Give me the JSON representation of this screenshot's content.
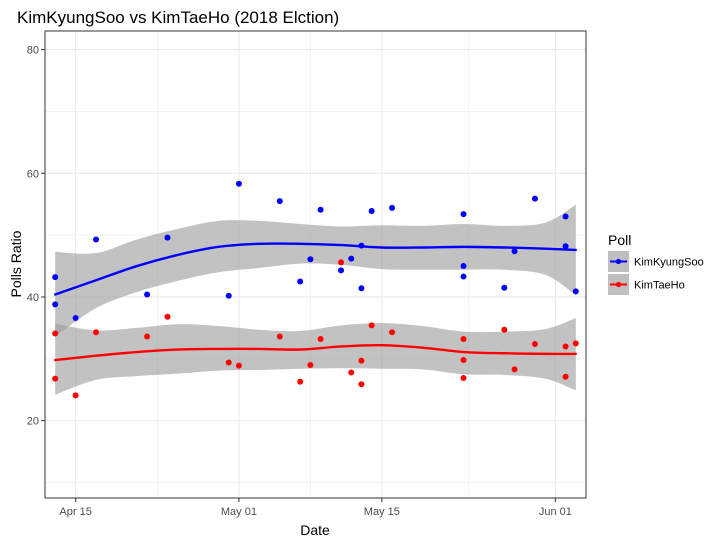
{
  "chart_data": {
    "type": "scatter",
    "title": "KimKyungSoo vs KimTaeHo (2018 Elction)",
    "xlabel": "Date",
    "ylabel": "Polls Ratio",
    "x_axis_type": "date",
    "xlim": [
      "2018-04-12",
      "2018-06-04"
    ],
    "ylim": [
      7.5,
      83
    ],
    "x_ticks": [
      {
        "date": "2018-04-15",
        "label": "Apr 15"
      },
      {
        "date": "2018-05-01",
        "label": "May 01"
      },
      {
        "date": "2018-05-15",
        "label": "May 15"
      },
      {
        "date": "2018-06-01",
        "label": "Jun 01"
      }
    ],
    "y_ticks": [
      {
        "value": 20,
        "label": "20"
      },
      {
        "value": 40,
        "label": "40"
      },
      {
        "value": 60,
        "label": "60"
      },
      {
        "value": 80,
        "label": "80"
      }
    ],
    "grid": true,
    "smoother": "loess with confidence band",
    "legend": {
      "title": "Poll",
      "position": "right"
    },
    "series": [
      {
        "name": "KimKyungSoo",
        "color": "#0000ff",
        "points": [
          {
            "x": "2018-04-13",
            "y": 43.2
          },
          {
            "x": "2018-04-13",
            "y": 38.8
          },
          {
            "x": "2018-04-15",
            "y": 36.6
          },
          {
            "x": "2018-04-17",
            "y": 49.3
          },
          {
            "x": "2018-04-22",
            "y": 40.4
          },
          {
            "x": "2018-04-24",
            "y": 49.6
          },
          {
            "x": "2018-04-30",
            "y": 40.2
          },
          {
            "x": "2018-05-01",
            "y": 58.3
          },
          {
            "x": "2018-05-05",
            "y": 55.5
          },
          {
            "x": "2018-05-07",
            "y": 42.5
          },
          {
            "x": "2018-05-08",
            "y": 46.1
          },
          {
            "x": "2018-05-09",
            "y": 54.1
          },
          {
            "x": "2018-05-11",
            "y": 44.3
          },
          {
            "x": "2018-05-12",
            "y": 46.2
          },
          {
            "x": "2018-05-13",
            "y": 48.3
          },
          {
            "x": "2018-05-13",
            "y": 41.4
          },
          {
            "x": "2018-05-14",
            "y": 53.9
          },
          {
            "x": "2018-05-16",
            "y": 54.4
          },
          {
            "x": "2018-05-23",
            "y": 53.4
          },
          {
            "x": "2018-05-23",
            "y": 45.0
          },
          {
            "x": "2018-05-23",
            "y": 43.3
          },
          {
            "x": "2018-05-27",
            "y": 41.5
          },
          {
            "x": "2018-05-28",
            "y": 47.4
          },
          {
            "x": "2018-05-30",
            "y": 55.9
          },
          {
            "x": "2018-06-02",
            "y": 53.0
          },
          {
            "x": "2018-06-02",
            "y": 48.2
          },
          {
            "x": "2018-06-03",
            "y": 40.9
          }
        ],
        "smooth": [
          {
            "x": "2018-04-13",
            "y": 40.4
          },
          {
            "x": "2018-04-17",
            "y": 42.7
          },
          {
            "x": "2018-04-21",
            "y": 45.0
          },
          {
            "x": "2018-04-25",
            "y": 46.8
          },
          {
            "x": "2018-04-29",
            "y": 48.1
          },
          {
            "x": "2018-05-03",
            "y": 48.6
          },
          {
            "x": "2018-05-07",
            "y": 48.6
          },
          {
            "x": "2018-05-11",
            "y": 48.4
          },
          {
            "x": "2018-05-15",
            "y": 48.0
          },
          {
            "x": "2018-05-19",
            "y": 48.0
          },
          {
            "x": "2018-05-23",
            "y": 48.1
          },
          {
            "x": "2018-05-27",
            "y": 48.0
          },
          {
            "x": "2018-05-31",
            "y": 47.8
          },
          {
            "x": "2018-06-03",
            "y": 47.6
          }
        ],
        "band_upper": [
          {
            "x": "2018-04-13",
            "y": 47.3
          },
          {
            "x": "2018-04-17",
            "y": 47.1
          },
          {
            "x": "2018-04-21",
            "y": 49.3
          },
          {
            "x": "2018-04-25",
            "y": 51.0
          },
          {
            "x": "2018-04-29",
            "y": 52.3
          },
          {
            "x": "2018-05-03",
            "y": 52.3
          },
          {
            "x": "2018-05-07",
            "y": 51.8
          },
          {
            "x": "2018-05-11",
            "y": 51.4
          },
          {
            "x": "2018-05-15",
            "y": 51.6
          },
          {
            "x": "2018-05-19",
            "y": 51.5
          },
          {
            "x": "2018-05-23",
            "y": 51.8
          },
          {
            "x": "2018-05-27",
            "y": 51.5
          },
          {
            "x": "2018-05-31",
            "y": 52.0
          },
          {
            "x": "2018-06-03",
            "y": 54.9
          }
        ],
        "band_lower": [
          {
            "x": "2018-04-13",
            "y": 33.6
          },
          {
            "x": "2018-04-17",
            "y": 38.2
          },
          {
            "x": "2018-04-21",
            "y": 40.8
          },
          {
            "x": "2018-04-25",
            "y": 42.6
          },
          {
            "x": "2018-04-29",
            "y": 44.0
          },
          {
            "x": "2018-05-03",
            "y": 44.7
          },
          {
            "x": "2018-05-07",
            "y": 45.4
          },
          {
            "x": "2018-05-11",
            "y": 45.2
          },
          {
            "x": "2018-05-15",
            "y": 44.5
          },
          {
            "x": "2018-05-19",
            "y": 44.4
          },
          {
            "x": "2018-05-23",
            "y": 44.4
          },
          {
            "x": "2018-05-27",
            "y": 44.4
          },
          {
            "x": "2018-05-31",
            "y": 43.6
          },
          {
            "x": "2018-06-03",
            "y": 40.3
          }
        ]
      },
      {
        "name": "KimTaeHo",
        "color": "#ff0000",
        "points": [
          {
            "x": "2018-04-13",
            "y": 34.1
          },
          {
            "x": "2018-04-13",
            "y": 26.8
          },
          {
            "x": "2018-04-15",
            "y": 24.1
          },
          {
            "x": "2018-04-17",
            "y": 34.3
          },
          {
            "x": "2018-04-22",
            "y": 33.6
          },
          {
            "x": "2018-04-24",
            "y": 36.8
          },
          {
            "x": "2018-04-30",
            "y": 29.4
          },
          {
            "x": "2018-05-01",
            "y": 28.9
          },
          {
            "x": "2018-05-05",
            "y": 33.6
          },
          {
            "x": "2018-05-07",
            "y": 26.3
          },
          {
            "x": "2018-05-08",
            "y": 29.0
          },
          {
            "x": "2018-05-09",
            "y": 33.2
          },
          {
            "x": "2018-05-11",
            "y": 45.6
          },
          {
            "x": "2018-05-12",
            "y": 27.8
          },
          {
            "x": "2018-05-13",
            "y": 29.7
          },
          {
            "x": "2018-05-13",
            "y": 25.9
          },
          {
            "x": "2018-05-14",
            "y": 35.4
          },
          {
            "x": "2018-05-16",
            "y": 34.3
          },
          {
            "x": "2018-05-23",
            "y": 33.2
          },
          {
            "x": "2018-05-23",
            "y": 29.8
          },
          {
            "x": "2018-05-23",
            "y": 26.9
          },
          {
            "x": "2018-05-27",
            "y": 34.7
          },
          {
            "x": "2018-05-28",
            "y": 28.3
          },
          {
            "x": "2018-05-30",
            "y": 32.4
          },
          {
            "x": "2018-06-02",
            "y": 32.0
          },
          {
            "x": "2018-06-02",
            "y": 27.1
          },
          {
            "x": "2018-06-03",
            "y": 32.5
          }
        ],
        "smooth": [
          {
            "x": "2018-04-13",
            "y": 29.8
          },
          {
            "x": "2018-04-17",
            "y": 30.5
          },
          {
            "x": "2018-04-21",
            "y": 31.1
          },
          {
            "x": "2018-04-25",
            "y": 31.5
          },
          {
            "x": "2018-04-29",
            "y": 31.6
          },
          {
            "x": "2018-05-03",
            "y": 31.6
          },
          {
            "x": "2018-05-07",
            "y": 31.5
          },
          {
            "x": "2018-05-11",
            "y": 32.0
          },
          {
            "x": "2018-05-15",
            "y": 32.2
          },
          {
            "x": "2018-05-19",
            "y": 31.8
          },
          {
            "x": "2018-05-23",
            "y": 31.1
          },
          {
            "x": "2018-05-27",
            "y": 30.9
          },
          {
            "x": "2018-05-31",
            "y": 30.8
          },
          {
            "x": "2018-06-03",
            "y": 30.8
          }
        ],
        "band_upper": [
          {
            "x": "2018-04-13",
            "y": 35.7
          },
          {
            "x": "2018-04-17",
            "y": 34.6
          },
          {
            "x": "2018-04-21",
            "y": 35.0
          },
          {
            "x": "2018-04-25",
            "y": 35.6
          },
          {
            "x": "2018-04-29",
            "y": 35.3
          },
          {
            "x": "2018-05-03",
            "y": 34.7
          },
          {
            "x": "2018-05-07",
            "y": 34.5
          },
          {
            "x": "2018-05-11",
            "y": 35.4
          },
          {
            "x": "2018-05-15",
            "y": 35.8
          },
          {
            "x": "2018-05-19",
            "y": 35.3
          },
          {
            "x": "2018-05-23",
            "y": 34.4
          },
          {
            "x": "2018-05-27",
            "y": 34.4
          },
          {
            "x": "2018-05-31",
            "y": 34.8
          },
          {
            "x": "2018-06-03",
            "y": 36.6
          }
        ],
        "band_lower": [
          {
            "x": "2018-04-13",
            "y": 24.2
          },
          {
            "x": "2018-04-17",
            "y": 26.6
          },
          {
            "x": "2018-04-21",
            "y": 27.2
          },
          {
            "x": "2018-04-25",
            "y": 27.6
          },
          {
            "x": "2018-04-29",
            "y": 28.1
          },
          {
            "x": "2018-05-03",
            "y": 28.2
          },
          {
            "x": "2018-05-07",
            "y": 28.4
          },
          {
            "x": "2018-05-11",
            "y": 28.5
          },
          {
            "x": "2018-05-15",
            "y": 28.4
          },
          {
            "x": "2018-05-19",
            "y": 28.3
          },
          {
            "x": "2018-05-23",
            "y": 27.5
          },
          {
            "x": "2018-05-27",
            "y": 27.4
          },
          {
            "x": "2018-05-31",
            "y": 26.8
          },
          {
            "x": "2018-06-03",
            "y": 24.9
          }
        ]
      }
    ]
  }
}
